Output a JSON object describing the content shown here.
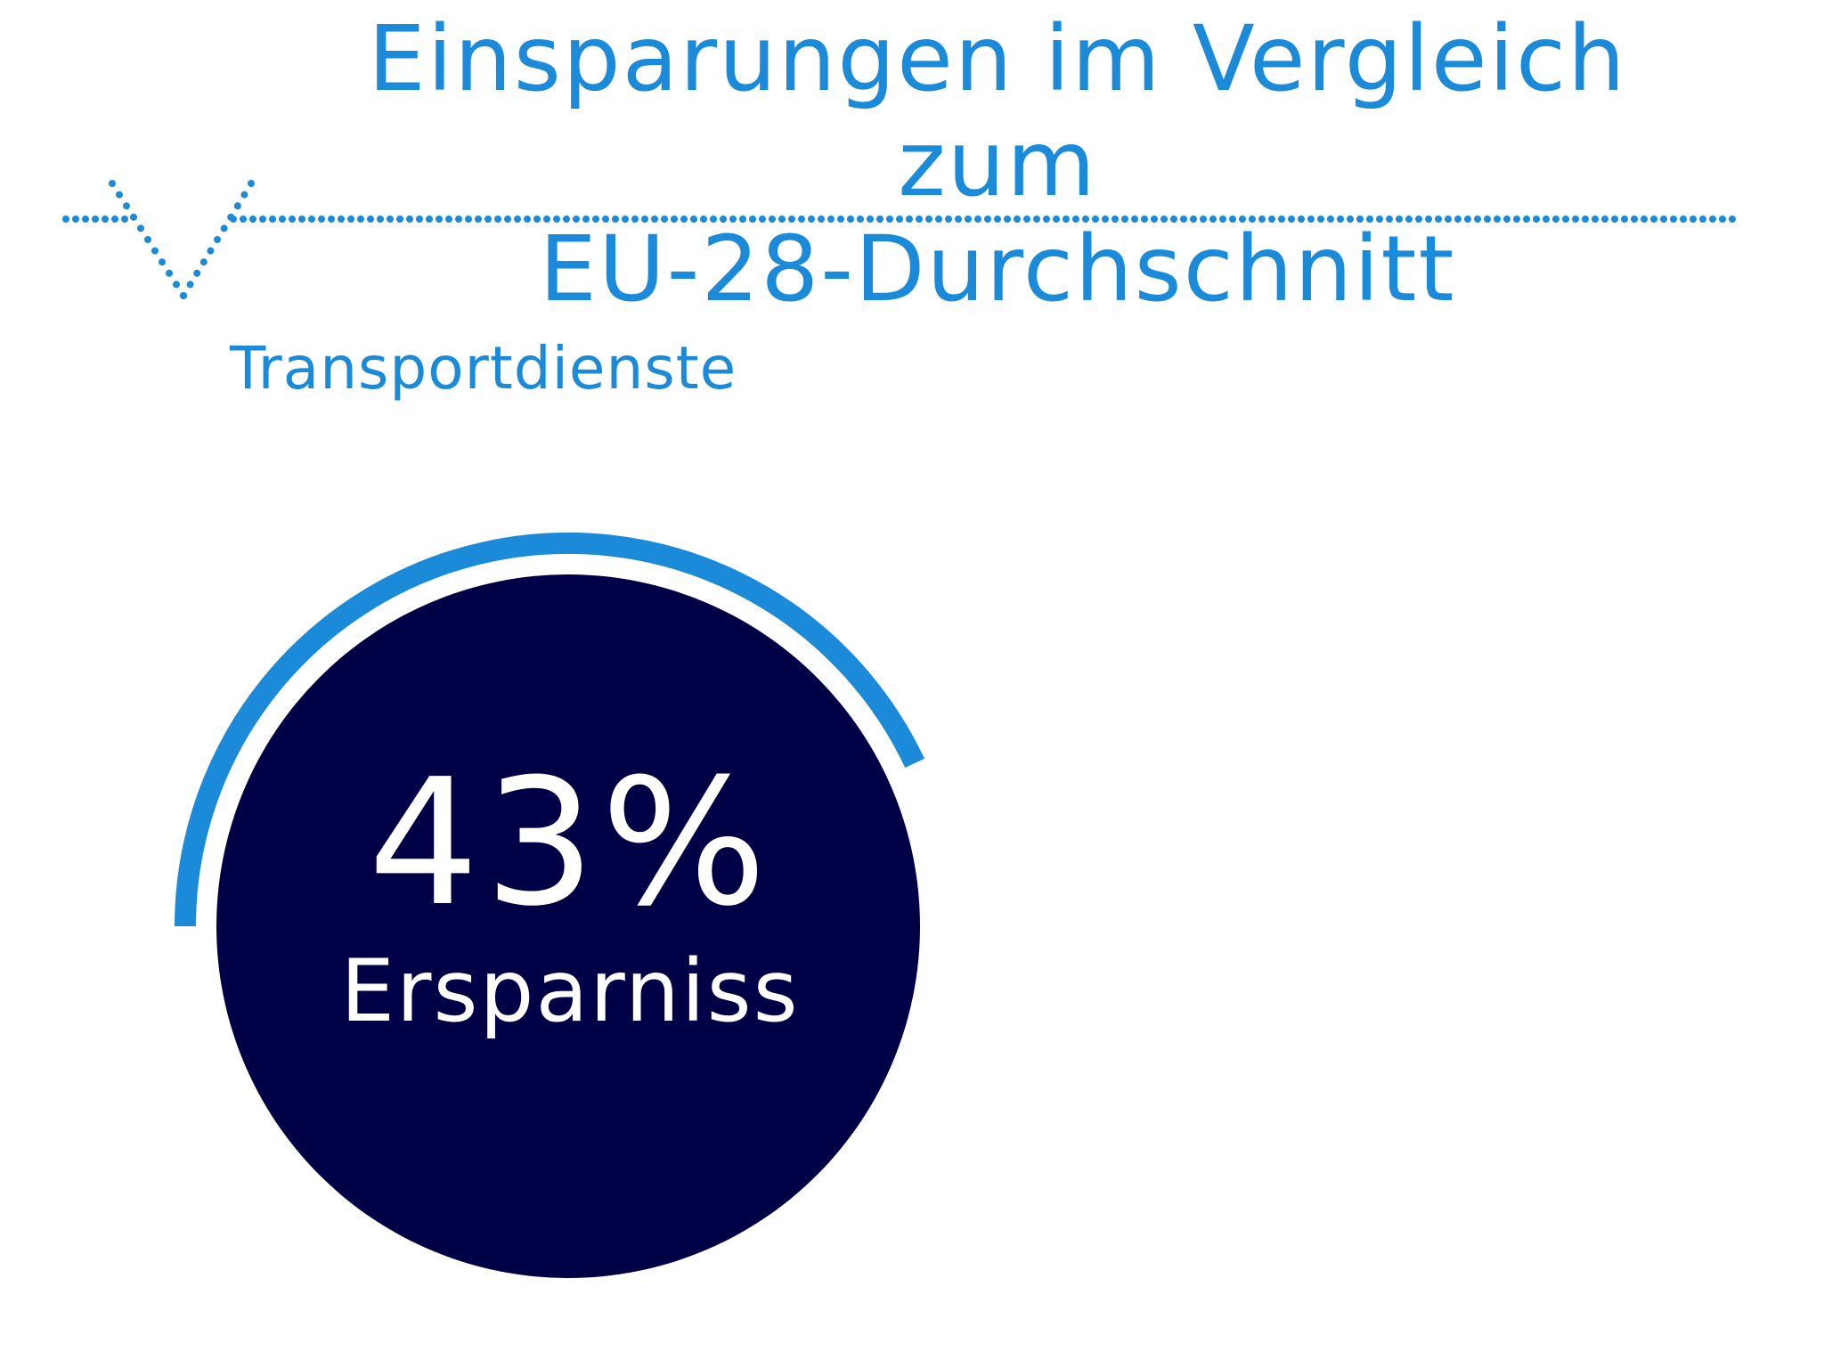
{
  "header": {
    "title_line1": "Einsparungen im Vergleich zum",
    "title_line2": "EU-28-Durchschnitt"
  },
  "category": "Transportdienste",
  "chart_data": {
    "type": "gauge",
    "value": 43,
    "unit": "%",
    "value_text": "43%",
    "label": "Ersparniss",
    "colors": {
      "arc": "#1b8ad8",
      "circle": "#000046",
      "text": "#ffffff",
      "title": "#1b8ad8"
    }
  },
  "icons": {
    "divider": "dotted-line-chevron-down-icon"
  }
}
